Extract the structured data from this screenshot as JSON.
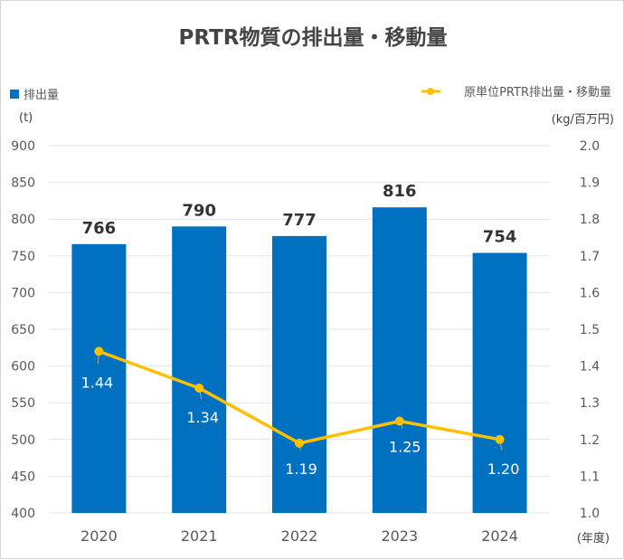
{
  "chart_data": {
    "type": "bar",
    "title": "PRTR物質の排出量・移動量",
    "categories": [
      "2020",
      "2021",
      "2022",
      "2023",
      "2024"
    ],
    "xlabel": "(年度)",
    "series": [
      {
        "name": "排出量",
        "kind": "bar",
        "axis": "left",
        "color": "#0070c0",
        "values": [
          766,
          790,
          777,
          816,
          754
        ],
        "labels": [
          "766",
          "790",
          "777",
          "816",
          "754"
        ]
      },
      {
        "name": "原単位PRTR排出量・移動量",
        "kind": "line",
        "axis": "right",
        "color": "#ffc000",
        "values": [
          1.44,
          1.34,
          1.19,
          1.25,
          1.2
        ],
        "labels": [
          "1.44",
          "1.34",
          "1.19",
          "1.25",
          "1.20"
        ]
      }
    ],
    "y_left": {
      "label": "(t)",
      "ylim": [
        400,
        900
      ],
      "ticks": [
        "400",
        "450",
        "500",
        "550",
        "600",
        "650",
        "700",
        "750",
        "800",
        "850",
        "900"
      ]
    },
    "y_right": {
      "label": "(kg/百万円)",
      "ylim": [
        1.0,
        2.0
      ],
      "ticks": [
        "1.0",
        "1.1",
        "1.2",
        "1.3",
        "1.4",
        "1.5",
        "1.6",
        "1.7",
        "1.8",
        "1.9",
        "2.0"
      ]
    },
    "grid": true,
    "legend": [
      {
        "name": "排出量",
        "placement": "top-left",
        "marker": "square"
      },
      {
        "name": "原単位PRTR排出量・移動量",
        "placement": "top-right",
        "marker": "line-with-dot"
      }
    ]
  }
}
